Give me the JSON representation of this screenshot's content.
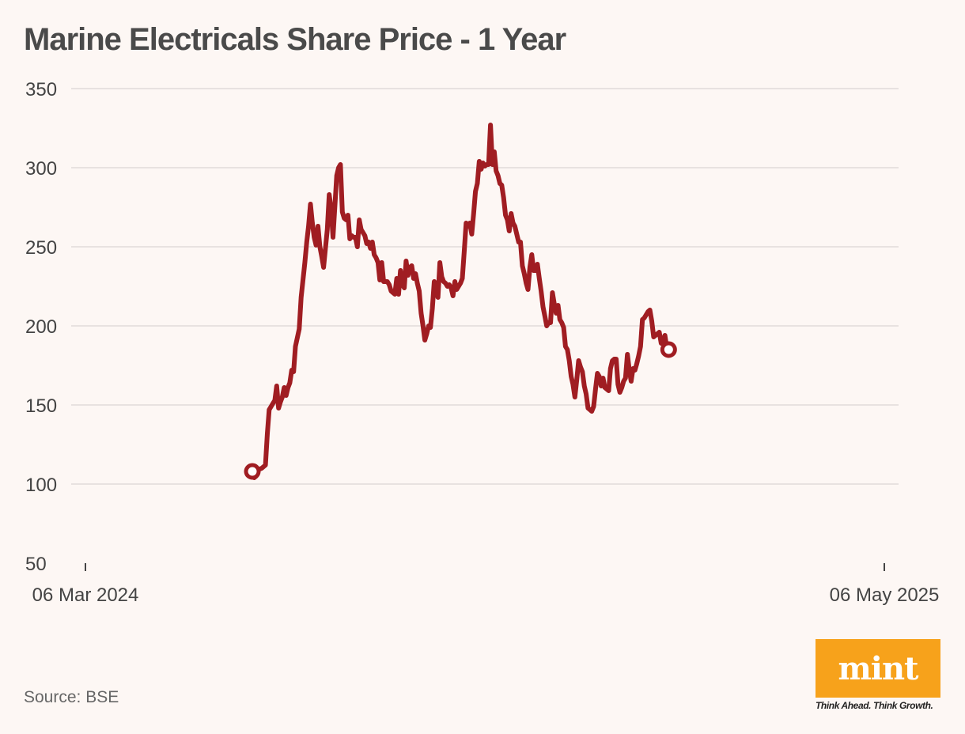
{
  "chart_data": {
    "type": "line",
    "title": "Marine Electricals Share Price - 1 Year",
    "xlabel": "",
    "ylabel": "",
    "ylim": [
      50,
      350
    ],
    "yticks": [
      50,
      100,
      150,
      200,
      250,
      300,
      350
    ],
    "x_tick_labels": [
      "06 Mar 2024",
      "06 May 2025"
    ],
    "x_domain_days": 426,
    "series": [
      {
        "name": "Share Price",
        "color": "#a01d22",
        "points": [
          [
            89,
            108
          ],
          [
            90,
            104
          ],
          [
            91,
            105
          ],
          [
            92,
            109
          ],
          [
            94,
            110
          ],
          [
            96,
            112
          ],
          [
            97,
            132
          ],
          [
            98,
            147
          ],
          [
            100,
            151
          ],
          [
            101,
            153
          ],
          [
            102,
            162
          ],
          [
            103,
            148
          ],
          [
            104,
            152
          ],
          [
            105,
            155
          ],
          [
            106,
            161
          ],
          [
            107,
            156
          ],
          [
            108,
            161
          ],
          [
            109,
            164
          ],
          [
            110,
            172
          ],
          [
            111,
            171
          ],
          [
            112,
            187
          ],
          [
            114,
            198
          ],
          [
            115,
            218
          ],
          [
            117,
            240
          ],
          [
            118,
            253
          ],
          [
            119,
            263
          ],
          [
            120,
            277
          ],
          [
            121,
            265
          ],
          [
            122,
            256
          ],
          [
            123,
            251
          ],
          [
            124,
            263
          ],
          [
            125,
            250
          ],
          [
            126,
            244
          ],
          [
            127,
            237
          ],
          [
            129,
            261
          ],
          [
            130,
            283
          ],
          [
            131,
            274
          ],
          [
            132,
            256
          ],
          [
            133,
            275
          ],
          [
            134,
            295
          ],
          [
            135,
            300
          ],
          [
            136,
            302
          ],
          [
            137,
            272
          ],
          [
            138,
            268
          ],
          [
            139,
            267
          ],
          [
            140,
            270
          ],
          [
            141,
            255
          ],
          [
            142,
            257
          ],
          [
            143,
            256
          ],
          [
            144,
            256
          ],
          [
            145,
            250
          ],
          [
            146,
            267
          ],
          [
            147,
            261
          ],
          [
            148,
            259
          ],
          [
            149,
            257
          ],
          [
            150,
            252
          ],
          [
            151,
            253
          ],
          [
            152,
            249
          ],
          [
            153,
            253
          ],
          [
            154,
            245
          ],
          [
            155,
            243
          ],
          [
            156,
            240
          ],
          [
            157,
            229
          ],
          [
            158,
            240
          ],
          [
            159,
            228
          ],
          [
            160,
            228
          ],
          [
            161,
            228
          ],
          [
            162,
            226
          ],
          [
            163,
            222
          ],
          [
            164,
            221
          ],
          [
            165,
            220
          ],
          [
            166,
            230
          ],
          [
            167,
            220
          ],
          [
            168,
            235
          ],
          [
            169,
            226
          ],
          [
            170,
            224
          ],
          [
            171,
            241
          ],
          [
            172,
            232
          ],
          [
            173,
            237
          ],
          [
            174,
            238
          ],
          [
            175,
            230
          ],
          [
            176,
            233
          ],
          [
            177,
            227
          ],
          [
            178,
            222
          ],
          [
            179,
            208
          ],
          [
            180,
            200
          ],
          [
            181,
            191
          ],
          [
            182,
            195
          ],
          [
            183,
            200
          ],
          [
            184,
            199
          ],
          [
            185,
            211
          ],
          [
            186,
            228
          ],
          [
            187,
            225
          ],
          [
            188,
            218
          ],
          [
            189,
            240
          ],
          [
            190,
            231
          ],
          [
            191,
            228
          ],
          [
            192,
            227
          ],
          [
            193,
            225
          ],
          [
            194,
            226
          ],
          [
            195,
            224
          ],
          [
            196,
            219
          ],
          [
            197,
            228
          ],
          [
            198,
            223
          ],
          [
            199,
            225
          ],
          [
            200,
            227
          ],
          [
            201,
            230
          ],
          [
            202,
            247
          ],
          [
            203,
            265
          ],
          [
            204,
            263
          ],
          [
            205,
            265
          ],
          [
            206,
            258
          ],
          [
            207,
            271
          ],
          [
            208,
            285
          ],
          [
            209,
            290
          ],
          [
            210,
            304
          ],
          [
            211,
            299
          ],
          [
            212,
            303
          ],
          [
            213,
            301
          ],
          [
            214,
            302
          ],
          [
            215,
            302
          ],
          [
            216,
            327
          ],
          [
            217,
            302
          ],
          [
            218,
            310
          ],
          [
            219,
            298
          ],
          [
            220,
            295
          ],
          [
            221,
            290
          ],
          [
            222,
            289
          ],
          [
            223,
            281
          ],
          [
            224,
            270
          ],
          [
            225,
            267
          ],
          [
            226,
            260
          ],
          [
            227,
            271
          ],
          [
            228,
            265
          ],
          [
            229,
            263
          ],
          [
            230,
            258
          ],
          [
            231,
            253
          ],
          [
            232,
            253
          ],
          [
            233,
            238
          ],
          [
            234,
            233
          ],
          [
            235,
            227
          ],
          [
            236,
            223
          ],
          [
            237,
            237
          ],
          [
            238,
            245
          ],
          [
            239,
            235
          ],
          [
            240,
            235
          ],
          [
            241,
            239
          ],
          [
            242,
            230
          ],
          [
            243,
            222
          ],
          [
            244,
            212
          ],
          [
            245,
            206
          ],
          [
            246,
            200
          ],
          [
            247,
            202
          ],
          [
            248,
            202
          ],
          [
            249,
            221
          ],
          [
            250,
            214
          ],
          [
            251,
            208
          ],
          [
            252,
            213
          ],
          [
            253,
            204
          ],
          [
            254,
            202
          ],
          [
            255,
            199
          ],
          [
            256,
            187
          ],
          [
            257,
            185
          ],
          [
            258,
            178
          ],
          [
            259,
            168
          ],
          [
            260,
            163
          ],
          [
            261,
            155
          ],
          [
            262,
            166
          ],
          [
            263,
            178
          ],
          [
            264,
            174
          ],
          [
            265,
            171
          ],
          [
            266,
            162
          ],
          [
            267,
            157
          ],
          [
            268,
            148
          ],
          [
            269,
            147
          ],
          [
            270,
            146
          ],
          [
            271,
            149
          ],
          [
            272,
            160
          ],
          [
            273,
            170
          ],
          [
            274,
            168
          ],
          [
            275,
            162
          ],
          [
            276,
            167
          ],
          [
            277,
            161
          ],
          [
            278,
            160
          ],
          [
            279,
            159
          ],
          [
            280,
            173
          ],
          [
            281,
            178
          ],
          [
            282,
            179
          ],
          [
            283,
            179
          ],
          [
            284,
            163
          ],
          [
            285,
            158
          ],
          [
            286,
            161
          ],
          [
            287,
            165
          ],
          [
            288,
            167
          ],
          [
            289,
            182
          ],
          [
            290,
            172
          ],
          [
            291,
            165
          ],
          [
            292,
            173
          ],
          [
            293,
            172
          ],
          [
            294,
            176
          ],
          [
            295,
            181
          ],
          [
            296,
            187
          ],
          [
            297,
            204
          ],
          [
            298,
            205
          ],
          [
            299,
            207
          ],
          [
            300,
            209
          ],
          [
            301,
            210
          ],
          [
            302,
            203
          ],
          [
            303,
            193
          ],
          [
            304,
            194
          ],
          [
            305,
            195
          ],
          [
            306,
            196
          ],
          [
            307,
            189
          ],
          [
            308,
            190
          ],
          [
            309,
            194
          ],
          [
            310,
            186
          ],
          [
            311,
            185
          ]
        ]
      }
    ]
  },
  "source": "Source: BSE",
  "brand": {
    "logo_text": "mint",
    "tagline": "Think Ahead. Think Growth.",
    "logo_color": "#f7a21b"
  }
}
